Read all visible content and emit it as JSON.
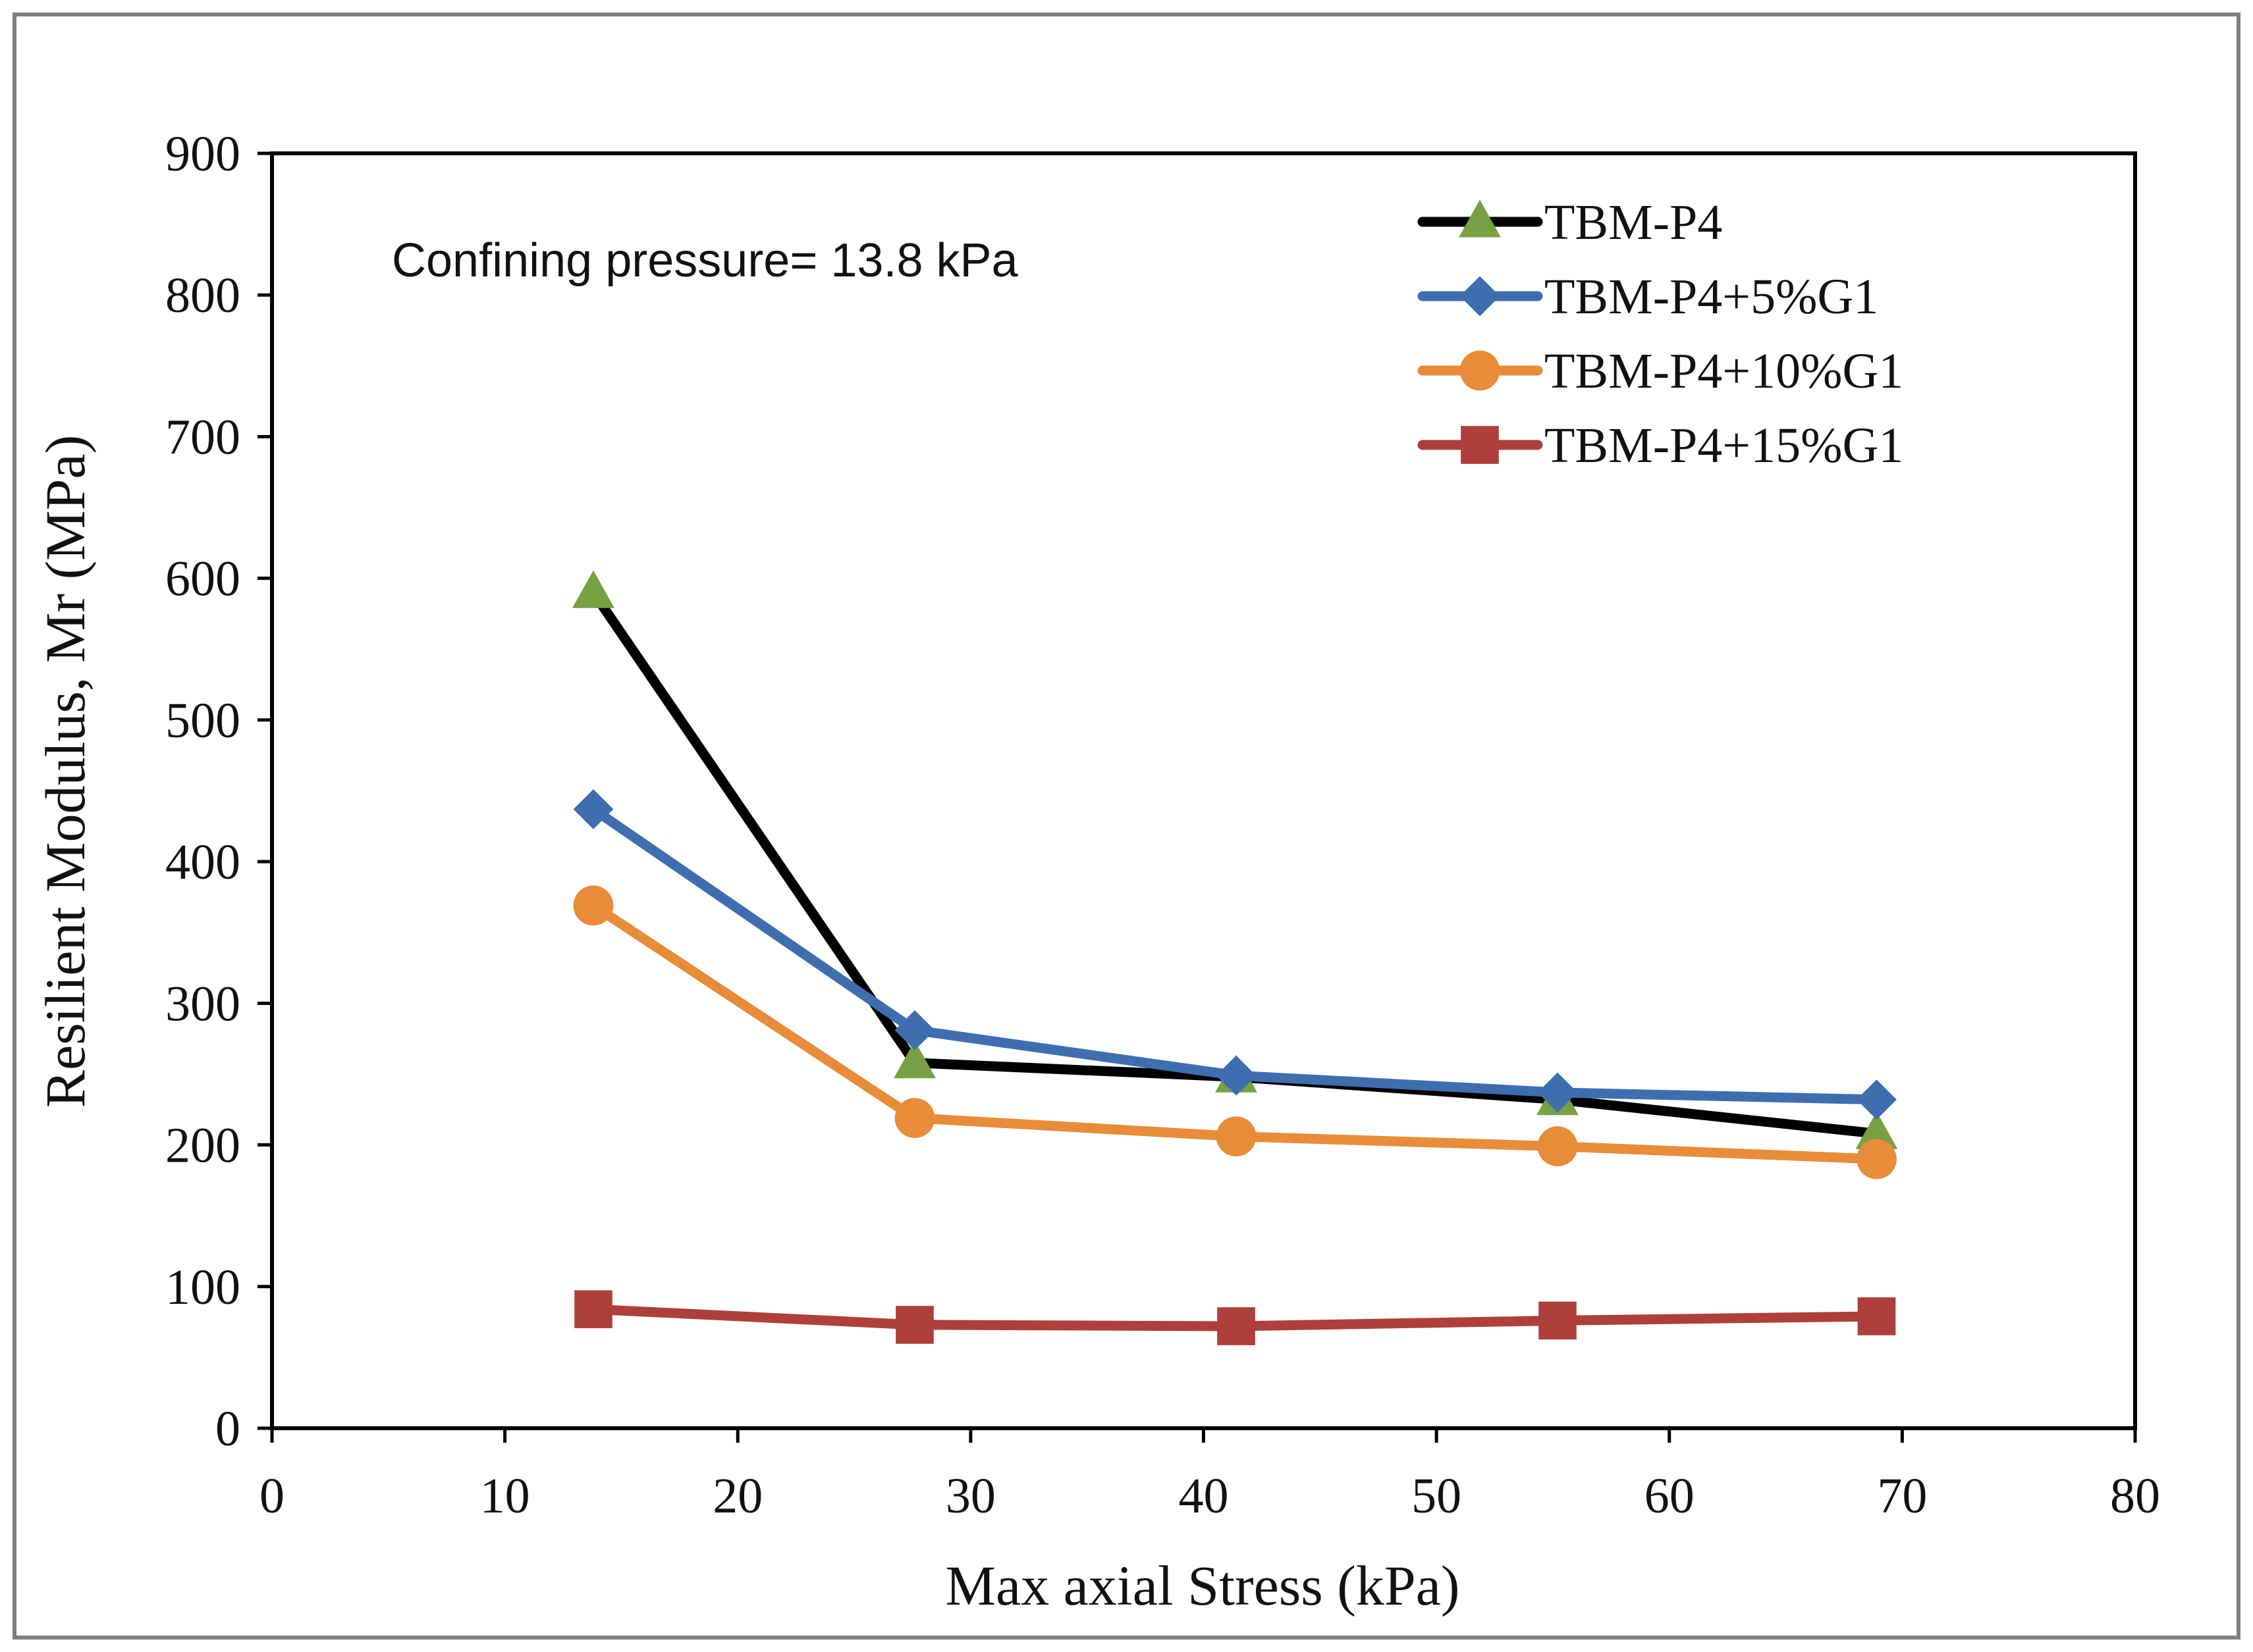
{
  "chart_data": {
    "type": "line",
    "title": "",
    "xlabel": "Max axial Stress (kPa)",
    "ylabel": "Resilient Modulus, Mr (MPa)",
    "xlim": [
      0,
      80
    ],
    "ylim": [
      0,
      900
    ],
    "xticks": [
      0,
      10,
      20,
      30,
      40,
      50,
      60,
      70,
      80
    ],
    "yticks": [
      0,
      100,
      200,
      300,
      400,
      500,
      600,
      700,
      800,
      900
    ],
    "grid": false,
    "legend_position": "top-right",
    "annotation": "Confining pressure= 13.8 kPa",
    "x": [
      13.8,
      27.6,
      41.4,
      55.2,
      68.9
    ],
    "series": [
      {
        "name": "TBM-P4",
        "line_color": "#000000",
        "marker_color": "#77A143",
        "marker": "triangle",
        "values": [
          590,
          258,
          248,
          232,
          208
        ]
      },
      {
        "name": "TBM-P4+5%G1",
        "line_color": "#3F6EB0",
        "marker_color": "#3F6EB0",
        "marker": "diamond",
        "values": [
          437,
          281,
          249,
          237,
          232
        ]
      },
      {
        "name": "TBM-P4+10%G1",
        "line_color": "#E88C3A",
        "marker_color": "#E88C3A",
        "marker": "circle",
        "values": [
          369,
          219,
          206,
          199,
          190
        ]
      },
      {
        "name": "TBM-P4+15%G1",
        "line_color": "#AE3F3B",
        "marker_color": "#AE3F3B",
        "marker": "square",
        "values": [
          84,
          73,
          72,
          76,
          79
        ]
      }
    ]
  }
}
